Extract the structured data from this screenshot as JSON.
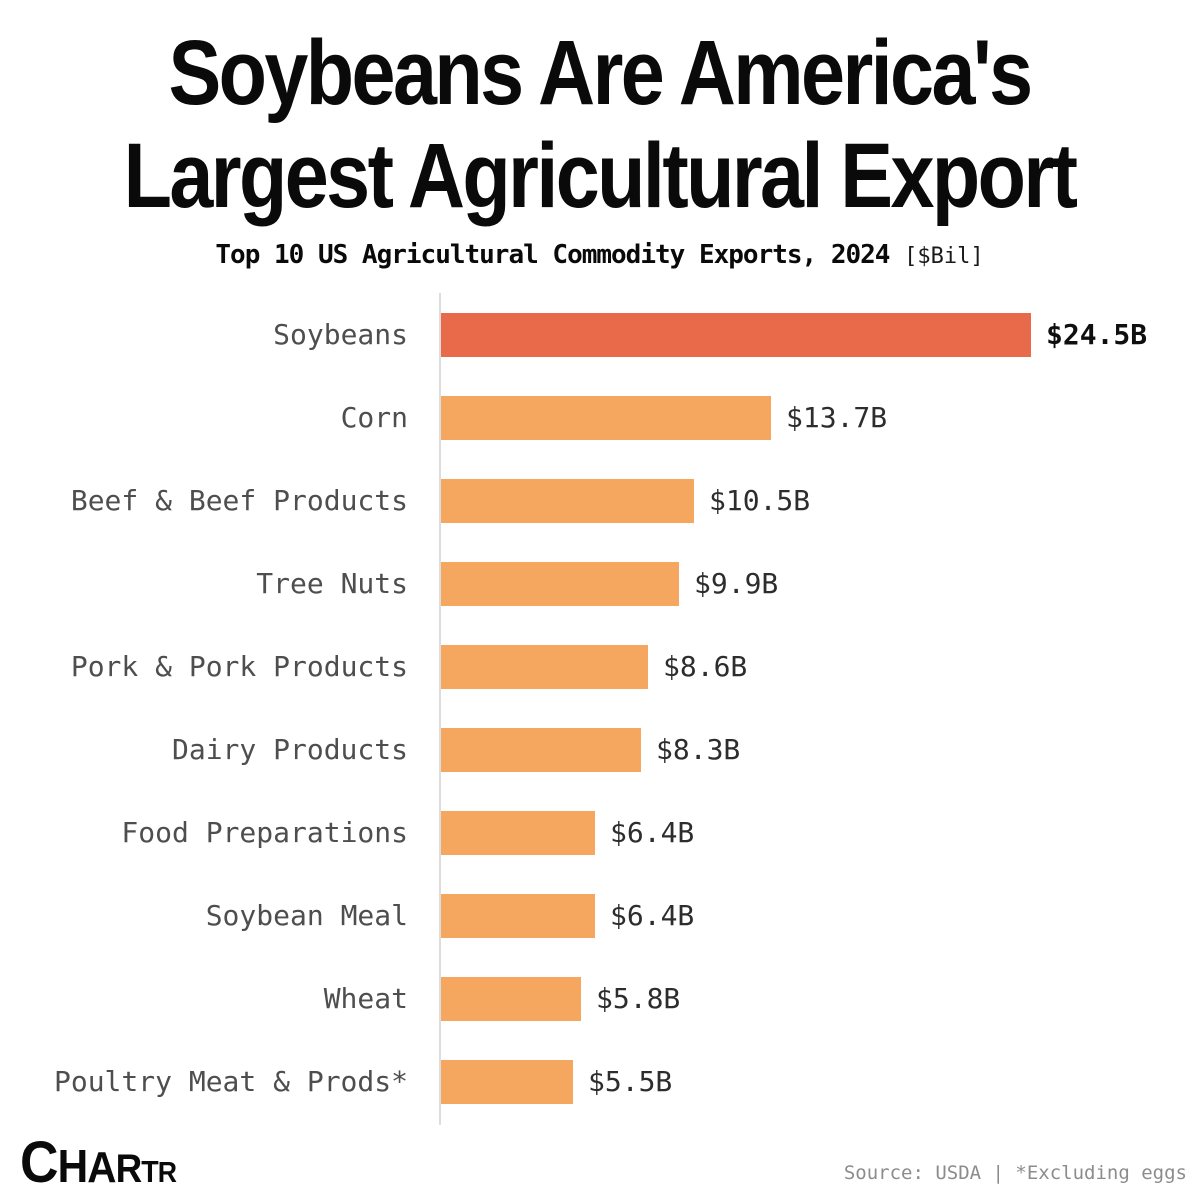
{
  "header": {
    "title": "Soybeans Are America's Largest Agricultural Export",
    "title_line1": "Soybeans Are America's",
    "title_line2": "Largest Agricultural Export",
    "subtitle": "Top 10 US Agricultural Commodity Exports, 2024",
    "unit_label": "[$Bil]"
  },
  "chart_data": {
    "type": "bar",
    "orientation": "horizontal",
    "title": "Top 10 US Agricultural Commodity Exports, 2024 [$Bil]",
    "categories": [
      "Soybeans",
      "Corn",
      "Beef & Beef Products",
      "Tree Nuts",
      "Pork & Pork Products",
      "Dairy Products",
      "Food Preparations",
      "Soybean Meal",
      "Wheat",
      "Poultry Meat & Prods*"
    ],
    "values": [
      24.5,
      13.7,
      10.5,
      9.9,
      8.6,
      8.3,
      6.4,
      6.4,
      5.8,
      5.5
    ],
    "value_labels": [
      "$24.5B",
      "$13.7B",
      "$10.5B",
      "$9.9B",
      "$8.6B",
      "$8.3B",
      "$6.4B",
      "$6.4B",
      "$5.8B",
      "$5.5B"
    ],
    "xlim": [
      0,
      24.5
    ],
    "grid": false,
    "legend": "none",
    "bar_color": "#F6A75F",
    "highlight_color": "#E96A4A",
    "highlight_index": 0
  },
  "footer": {
    "logo_text": "CHARTR",
    "source_text": "Source: USDA | *Excluding eggs"
  }
}
